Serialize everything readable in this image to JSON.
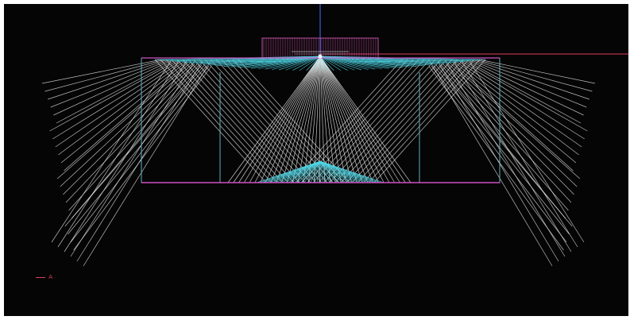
{
  "colors": {
    "background": "#050505",
    "frame": "#ffffff",
    "ray": "#e8e8e8",
    "cyan": "#4fd8e8",
    "outline": "#5fb0c0",
    "axis_vertical": "#4070ff",
    "axis_horizontal": "#e0405a",
    "surface": "#d050c0",
    "bolts": "#c050a0"
  },
  "legend": {
    "label": "A",
    "color": "#d94060"
  }
}
